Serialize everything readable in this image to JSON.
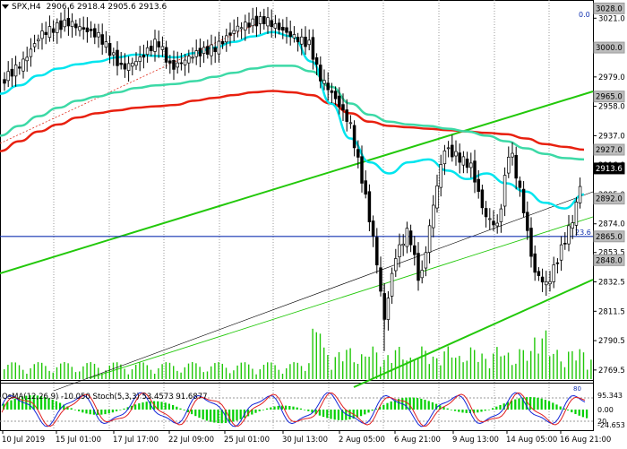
{
  "header": {
    "symbol": "SPX,H4",
    "ohlc": "2906.6 2918.4 2905.6 2913.6"
  },
  "top_right_value": "0.0",
  "price_axis": {
    "ticks": [
      "3021.0",
      "3000.0",
      "2979.0",
      "2958.0",
      "2937.0",
      "2916.0",
      "2895.0",
      "2874.0",
      "2853.5",
      "2832.5",
      "2811.5",
      "2790.5",
      "2769.5"
    ],
    "tick_values": [
      3021.0,
      3000.0,
      2979.0,
      2958.0,
      2937.0,
      2916.0,
      2895.0,
      2874.0,
      2853.5,
      2832.5,
      2811.5,
      2790.5,
      2769.5
    ],
    "boxed_labels": [
      {
        "text": "3028.0",
        "value": 3028.0,
        "style": "gray"
      },
      {
        "text": "3000.0",
        "value": 3000.0,
        "style": "gray"
      },
      {
        "text": "2965.0",
        "value": 2965.0,
        "style": "gray"
      },
      {
        "text": "2927.0",
        "value": 2927.0,
        "style": "gray"
      },
      {
        "text": "2913.6",
        "value": 2913.6,
        "style": "current"
      },
      {
        "text": "2892.0",
        "value": 2892.0,
        "style": "gray"
      },
      {
        "text": "2865.0",
        "value": 2865.0,
        "style": "gray"
      },
      {
        "text": "2848.0",
        "value": 2848.0,
        "style": "gray"
      }
    ],
    "fib_label": {
      "text": "23.6",
      "value": 2865.0
    },
    "range": [
      2763,
      3034
    ]
  },
  "time_axis": {
    "labels": [
      "10 Jul 2019",
      "15 Jul 01:00",
      "17 Jul 17:00",
      "22 Jul 09:00",
      "25 Jul 01:00",
      "30 Jul 13:00",
      "2 Aug 05:00",
      "6 Aug 21:00",
      "9 Aug 13:00",
      "14 Aug 05:00",
      "16 Aug 21:00"
    ]
  },
  "oscillator": {
    "header": "OsMA(12,26,9) -10.050 Stoch(5,3,3) 53.4573 91.6877",
    "axis_labels": [
      "95.343",
      "0.00",
      "20",
      "-24.653"
    ],
    "top_right_label": "80"
  },
  "colors": {
    "candle": "#000000",
    "ema_fast": "#00e5ee",
    "ema_mid": "#3cd9a6",
    "ema_slow": "#e8200f",
    "channel": "#22c80a",
    "level_line": "#1030b0",
    "volume": "#22c80a",
    "osma": "#00d000",
    "stoch_main": "#1428d8",
    "stoch_signal": "#e02020"
  },
  "chart_data": {
    "type": "candlestick",
    "symbol": "SPX",
    "timeframe": "H4",
    "ema_fast_approx": [
      2967,
      2973,
      2980,
      2985,
      2988,
      2990,
      2993,
      2995,
      2994,
      2993,
      2996,
      3000,
      3004,
      3008,
      3011,
      3008,
      2990,
      2960,
      2935,
      2918,
      2910,
      2918,
      2920,
      2912,
      2906,
      2910,
      2903,
      2897,
      2889,
      2885,
      2895
    ],
    "ema_mid_approx": [
      2937,
      2944,
      2951,
      2957,
      2962,
      2965,
      2968,
      2971,
      2973,
      2974,
      2976,
      2979,
      2982,
      2985,
      2987,
      2987,
      2983,
      2972,
      2960,
      2952,
      2947,
      2945,
      2944,
      2942,
      2940,
      2937,
      2933,
      2928,
      2924,
      2921,
      2920
    ],
    "ema_slow_approx": [
      2926,
      2933,
      2940,
      2945,
      2950,
      2953,
      2955,
      2957,
      2958,
      2959,
      2962,
      2964,
      2966,
      2968,
      2969,
      2968,
      2966,
      2960,
      2953,
      2947,
      2944,
      2943,
      2942,
      2941,
      2940,
      2939,
      2938,
      2935,
      2931,
      2929,
      2927
    ],
    "horizontal_level": 2865.0
  }
}
